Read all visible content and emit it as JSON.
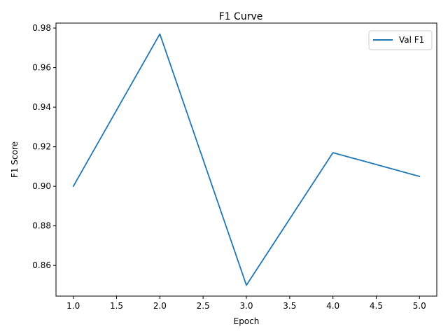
{
  "chart_data": {
    "type": "line",
    "title": "F1 Curve",
    "xlabel": "Epoch",
    "ylabel": "F1 Score",
    "xlim": [
      0.8,
      5.2
    ],
    "ylim": [
      0.8445,
      0.9825
    ],
    "xticks": [
      1.0,
      1.5,
      2.0,
      2.5,
      3.0,
      3.5,
      4.0,
      4.5,
      5.0
    ],
    "xtick_labels": [
      "1.0",
      "1.5",
      "2.0",
      "2.5",
      "3.0",
      "3.5",
      "4.0",
      "4.5",
      "5.0"
    ],
    "yticks": [
      0.86,
      0.88,
      0.9,
      0.92,
      0.94,
      0.96,
      0.98
    ],
    "ytick_labels": [
      "0.86",
      "0.88",
      "0.90",
      "0.92",
      "0.94",
      "0.96",
      "0.98"
    ],
    "grid": false,
    "legend": "upper-right",
    "series": [
      {
        "name": "Val F1",
        "color": "#1f77b4",
        "x": [
          1,
          2,
          3,
          4,
          5
        ],
        "y": [
          0.9,
          0.977,
          0.85,
          0.917,
          0.905
        ]
      }
    ]
  }
}
